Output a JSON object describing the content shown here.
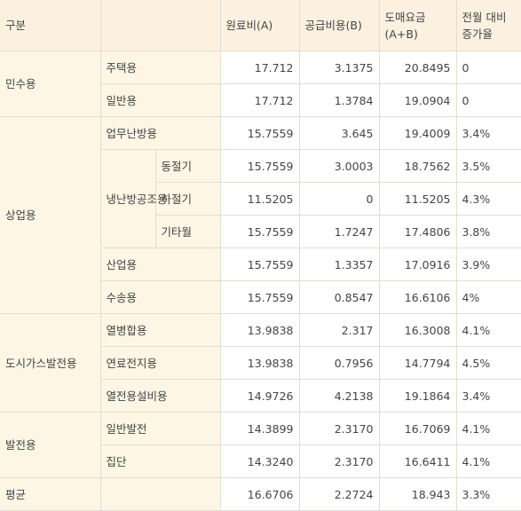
{
  "header": {
    "columns": [
      "구분",
      "원료비(A)",
      "공급비용(B)",
      "도매요금 (A+B)",
      "전월 대비 증가율"
    ]
  },
  "groups": [
    {
      "label": "민수용",
      "rows": [
        {
          "label": "주택용",
          "values": [
            "17.712",
            "3.1375",
            "20.8495",
            "0"
          ]
        },
        {
          "label": "일반용",
          "values": [
            "17.712",
            "1.3784",
            "19.0904",
            "0"
          ]
        }
      ]
    },
    {
      "label": "상업용",
      "rows": [
        {
          "label": "업무난방용",
          "values": [
            "15.7559",
            "3.645",
            "19.4009",
            "3.4%"
          ]
        },
        {
          "label": "냉난방공조용",
          "rows": [
            {
              "label": "동절기",
              "values": [
                "15.7559",
                "3.0003",
                "18.7562",
                "3.5%"
              ]
            },
            {
              "label": "하절기",
              "values": [
                "11.5205",
                "0",
                "11.5205",
                "4.3%"
              ]
            },
            {
              "label": "기타월",
              "values": [
                "15.7559",
                "1.7247",
                "17.4806",
                "3.8%"
              ]
            }
          ]
        },
        {
          "label": "산업용",
          "values": [
            "15.7559",
            "1.3357",
            "17.0916",
            "3.9%"
          ]
        },
        {
          "label": "수송용",
          "values": [
            "15.7559",
            "0.8547",
            "16.6106",
            "4%"
          ]
        }
      ]
    },
    {
      "label": "도시가스발전용",
      "rows": [
        {
          "label": "열병합용",
          "values": [
            "13.9838",
            "2.317",
            "16.3008",
            "4.1%"
          ]
        },
        {
          "label": "연료전지용",
          "values": [
            "13.9838",
            "0.7956",
            "14.7794",
            "4.5%"
          ]
        },
        {
          "label": "열전용설비용",
          "values": [
            "14.9726",
            "4.2138",
            "19.1864",
            "3.4%"
          ]
        }
      ]
    },
    {
      "label": "발전용",
      "rows": [
        {
          "label": "일반발전",
          "values": [
            "14.3899",
            "2.3170",
            "16.7069",
            "4.1%"
          ]
        },
        {
          "label": "집단",
          "values": [
            "14.3240",
            "2.3170",
            "16.6411",
            "4.1%"
          ]
        }
      ]
    }
  ],
  "footer": {
    "label": "평균",
    "values": [
      "16.6706",
      "2.2724",
      "18.943",
      "3.3%"
    ]
  }
}
